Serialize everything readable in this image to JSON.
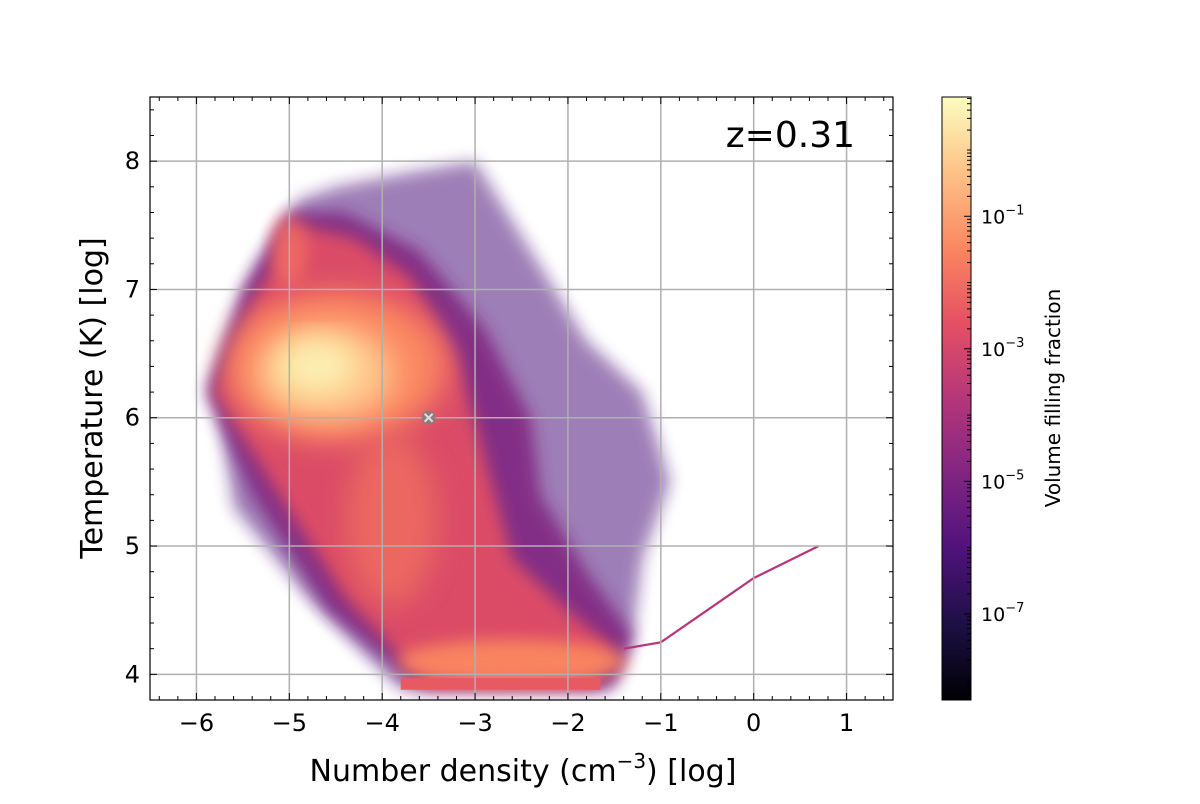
{
  "chart_data": {
    "type": "heatmap",
    "subtype": "2d-histogram phase diagram",
    "annotation": "z=0.31",
    "xlabel": {
      "pre": "Number density (cm",
      "sup": "−3",
      "post": ") [log]"
    },
    "ylabel": "Temperature (K) [log]",
    "xlim": [
      -6.5,
      1.5
    ],
    "ylim": [
      3.8,
      8.5
    ],
    "x_ticks": [
      -6,
      -5,
      -4,
      -3,
      -2,
      -1,
      0,
      1
    ],
    "x_tick_labels": [
      "−6",
      "−5",
      "−4",
      "−3",
      "−2",
      "−1",
      "0",
      "1"
    ],
    "y_ticks": [
      4,
      5,
      6,
      7,
      8
    ],
    "y_tick_labels": [
      "4",
      "5",
      "6",
      "7",
      "8"
    ],
    "grid": true,
    "colormap": "magma",
    "colorbar": {
      "label": "Volume filling fraction",
      "scale": "log",
      "range_log10": [
        -8.3,
        0.8
      ],
      "ticks_log10": [
        -7,
        -5,
        -3,
        -1
      ],
      "tick_labels": [
        {
          "base": "10",
          "exp": "−7"
        },
        {
          "base": "10",
          "exp": "−5"
        },
        {
          "base": "10",
          "exp": "−3"
        },
        {
          "base": "10",
          "exp": "−1"
        }
      ]
    },
    "marker": {
      "symbol": "x",
      "x": -3.5,
      "y": 6.0,
      "color": "#7f7f7f"
    },
    "distribution_features": [
      {
        "feature": "hot diffuse peak",
        "x": -4.6,
        "y": 6.35,
        "log10_fraction": 0.4
      },
      {
        "feature": "hot plume tip",
        "x": -5.0,
        "y": 7.6,
        "log10_fraction": -2.0
      },
      {
        "feature": "cooling branch",
        "x": -2.8,
        "y": 4.3,
        "log10_fraction": -1.3
      },
      {
        "feature": "floor at T ~ 10^3.95",
        "x_range": [
          -3.8,
          -1.65
        ],
        "y": 3.95,
        "log10_fraction": -1.5
      },
      {
        "feature": "star-forming EOS track",
        "x": [
          -1.4,
          -1.0,
          -0.5,
          0.0,
          0.7
        ],
        "y": [
          4.2,
          4.25,
          4.5,
          4.75,
          5.0
        ]
      }
    ]
  }
}
